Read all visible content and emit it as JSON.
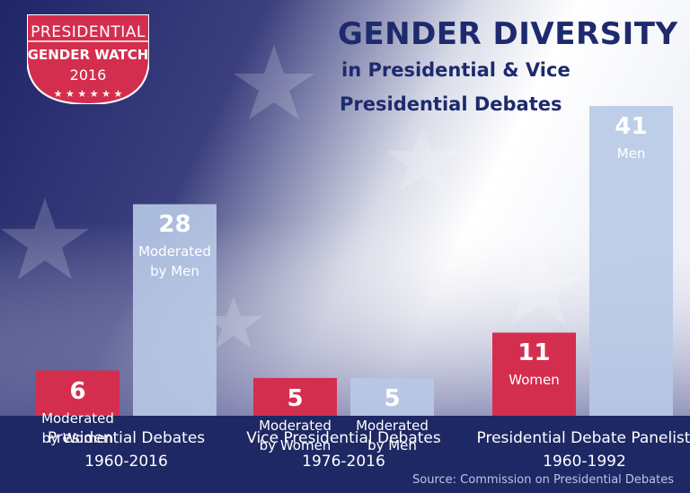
{
  "badge": {
    "line1": "PRESIDENTIAL",
    "line2": "GENDER WATCH",
    "line3": "2016"
  },
  "header": {
    "title": "GENDER DIVERSITY",
    "subtitle_1": "in Presidential & Vice",
    "subtitle_2": "Presidential Debates"
  },
  "source": "Source: Commission on Presidential Debates",
  "colors": {
    "navy": "#1e2a6e",
    "red": "#d42e4f",
    "light_blue": "#b8c9e6"
  },
  "chart_data": {
    "type": "bar",
    "title": "GENDER DIVERSITY in Presidential & Vice Presidential Debates",
    "ylim": [
      0,
      41
    ],
    "categories": [
      {
        "name": "Presidential Debates",
        "period": "1960-2016"
      },
      {
        "name": "Vice Presidential Debates",
        "period": "1976-2016"
      },
      {
        "name": "Presidential Debate Panelists",
        "period": "1960-1992"
      }
    ],
    "series": [
      {
        "name": "Women",
        "color": "#d42e4f",
        "values": [
          6,
          5,
          11
        ],
        "labels": [
          "Moderated\nby Women",
          "Moderated\nby Women",
          "Women"
        ]
      },
      {
        "name": "Men",
        "color": "#b8c9e6",
        "values": [
          28,
          5,
          41
        ],
        "labels": [
          "Moderated\nby  Men",
          "Moderated\nby  Men",
          "Men"
        ]
      }
    ]
  }
}
